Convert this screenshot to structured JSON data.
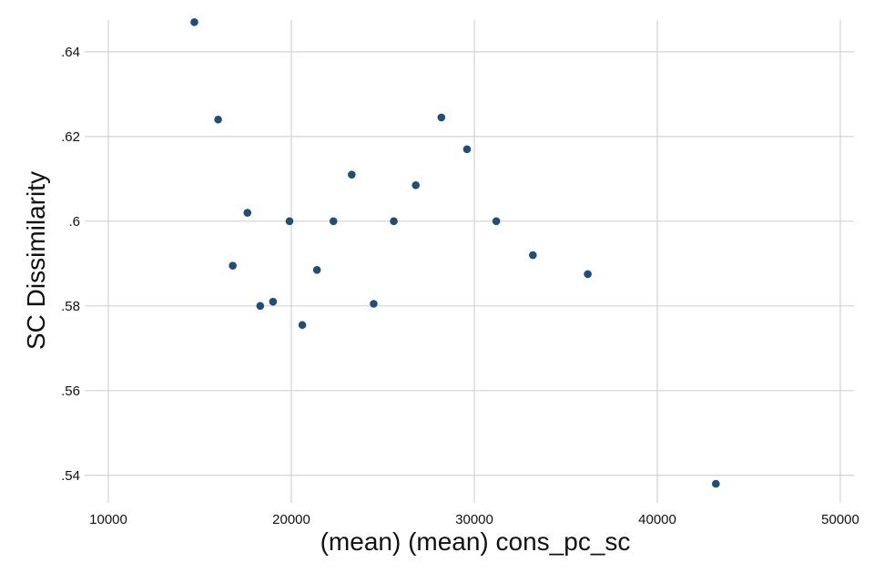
{
  "chart_data": {
    "type": "scatter",
    "title": "",
    "xlabel": "(mean) (mean) cons_pc_sc",
    "ylabel": "SC Dissimilarity",
    "xlim": [
      10000,
      50000
    ],
    "ylim": [
      0.5335,
      0.6475
    ],
    "x_ticks": [
      10000,
      20000,
      30000,
      40000,
      50000
    ],
    "x_tick_labels": [
      "10000",
      "20000",
      "30000",
      "40000",
      "50000"
    ],
    "y_ticks": [
      0.54,
      0.56,
      0.58,
      0.6,
      0.62,
      0.64
    ],
    "y_tick_labels": [
      ".54",
      ".56",
      ".58",
      ".6",
      ".62",
      ".64"
    ],
    "grid": true,
    "marker_color": "#1f4e79",
    "points": [
      {
        "x": 14700,
        "y": 0.647
      },
      {
        "x": 16000,
        "y": 0.624
      },
      {
        "x": 16800,
        "y": 0.5895
      },
      {
        "x": 17600,
        "y": 0.602
      },
      {
        "x": 18300,
        "y": 0.58
      },
      {
        "x": 19000,
        "y": 0.581
      },
      {
        "x": 19900,
        "y": 0.6
      },
      {
        "x": 20600,
        "y": 0.5755
      },
      {
        "x": 21400,
        "y": 0.5885
      },
      {
        "x": 22300,
        "y": 0.6
      },
      {
        "x": 23300,
        "y": 0.611
      },
      {
        "x": 24500,
        "y": 0.5805
      },
      {
        "x": 25600,
        "y": 0.6
      },
      {
        "x": 26800,
        "y": 0.6085
      },
      {
        "x": 28200,
        "y": 0.6245
      },
      {
        "x": 29600,
        "y": 0.617
      },
      {
        "x": 31200,
        "y": 0.6
      },
      {
        "x": 33200,
        "y": 0.592
      },
      {
        "x": 36200,
        "y": 0.5875
      },
      {
        "x": 43200,
        "y": 0.538
      }
    ]
  }
}
